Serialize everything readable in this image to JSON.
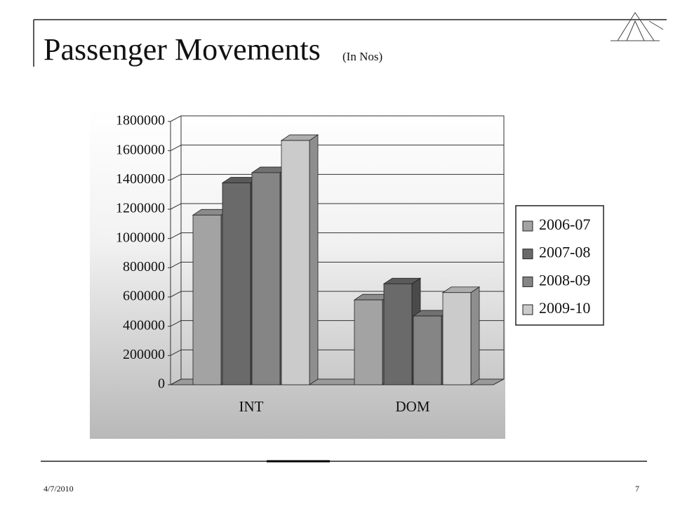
{
  "title": {
    "main": "Passenger Movements",
    "note": "(In Nos)"
  },
  "chart_data": {
    "type": "bar3d",
    "categories": [
      "INT",
      "DOM"
    ],
    "series": [
      {
        "name": "2006-07",
        "color": "#a3a3a3",
        "values": [
          1160000,
          580000
        ]
      },
      {
        "name": "2007-08",
        "color": "#6a6a6a",
        "values": [
          1380000,
          690000
        ]
      },
      {
        "name": "2008-09",
        "color": "#858585",
        "values": [
          1450000,
          470000
        ]
      },
      {
        "name": "2009-10",
        "color": "#cbcbcb",
        "values": [
          1670000,
          630000
        ]
      }
    ],
    "ylim": [
      0,
      1800000
    ],
    "yticks": [
      0,
      200000,
      400000,
      600000,
      800000,
      1000000,
      1200000,
      1400000,
      1600000,
      1800000
    ],
    "grid": true,
    "legend": "right"
  },
  "footer": {
    "date": "4/7/2010",
    "page": "7"
  }
}
